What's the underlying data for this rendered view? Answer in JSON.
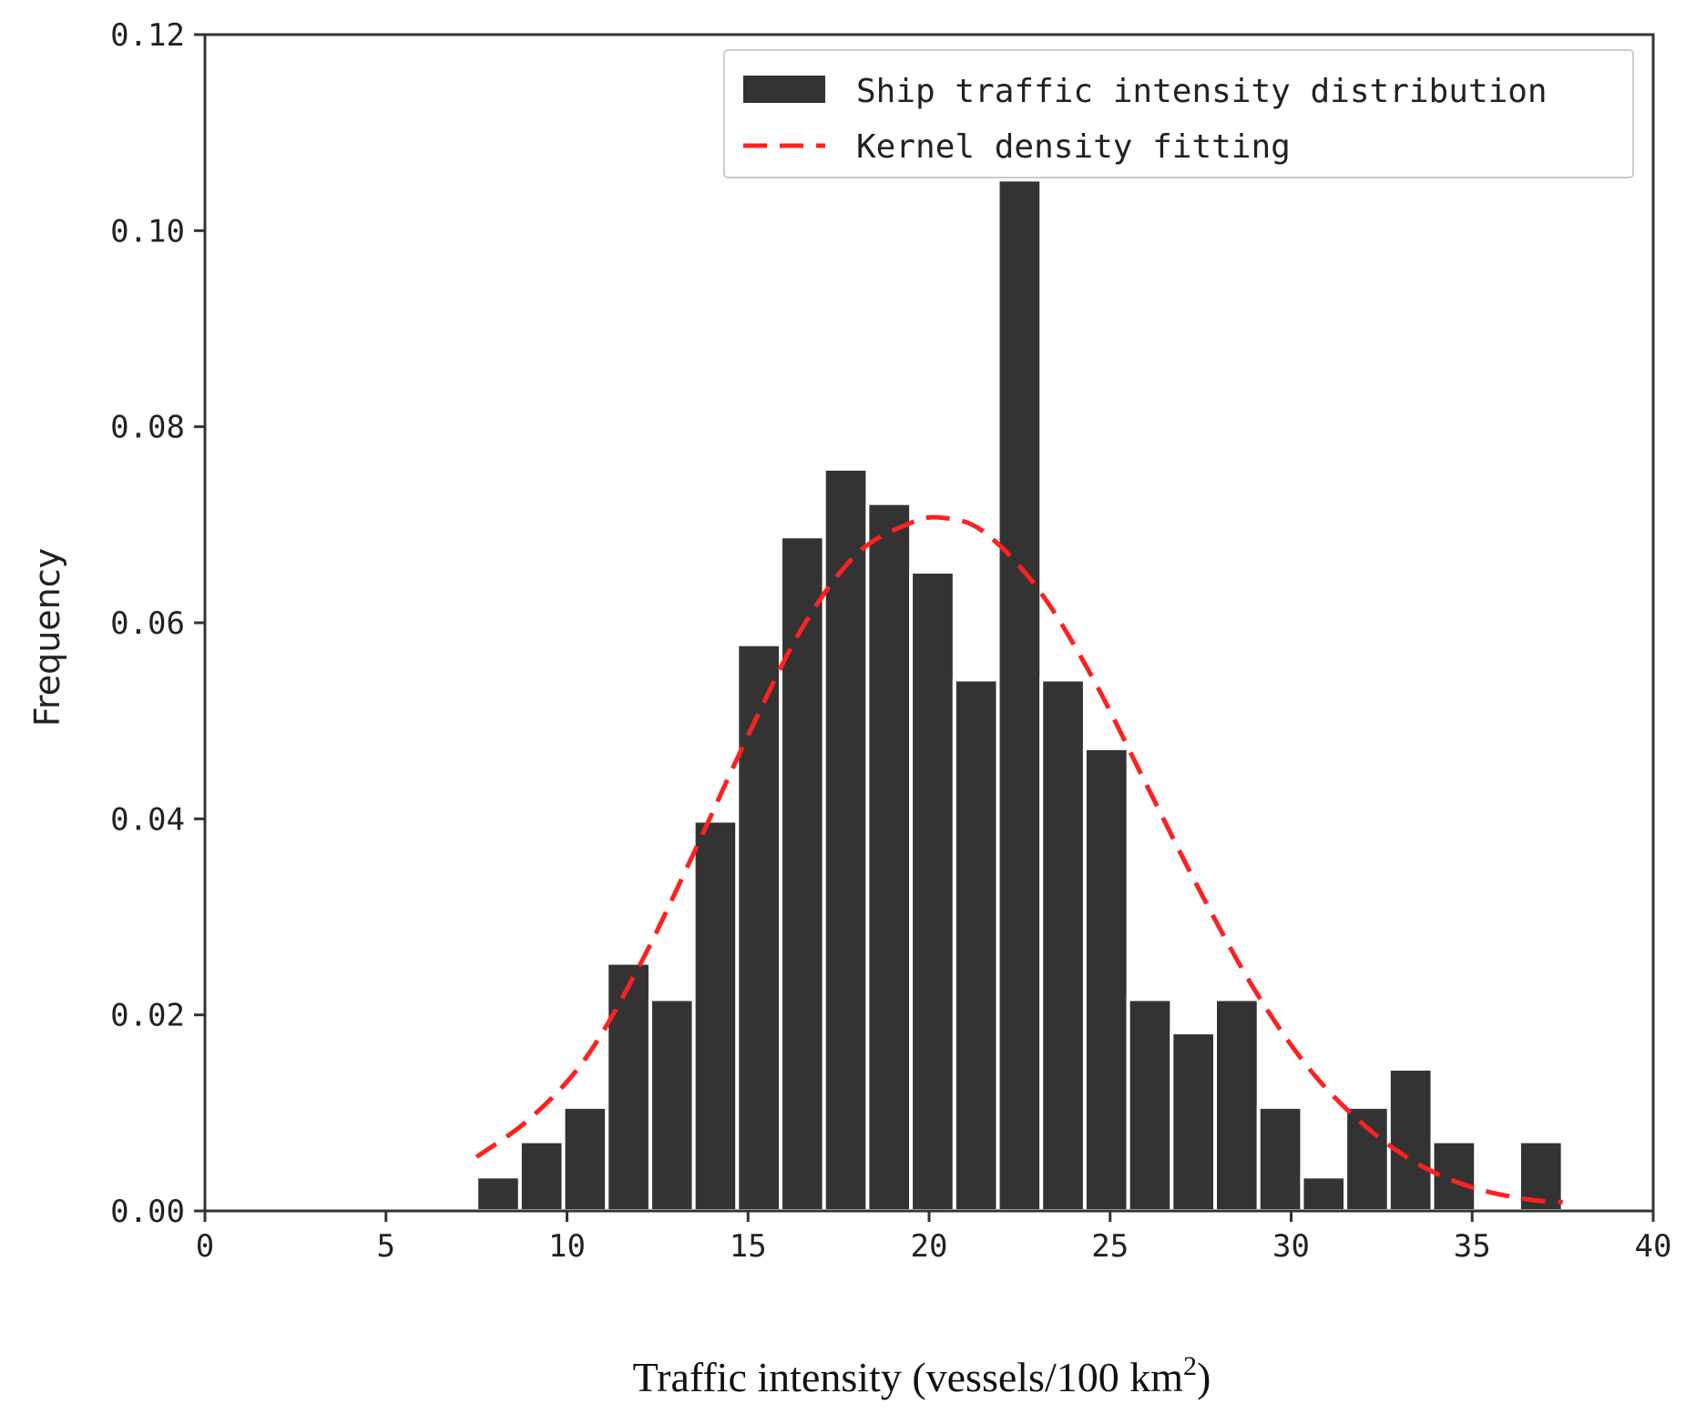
{
  "chart_data": {
    "type": "bar",
    "title": "",
    "xlabel": "Traffic intensity (vessels/100 km",
    "xlabel_superscript": "2",
    "xlabel_close": ")",
    "ylabel": "Frequency",
    "xlim": [
      0,
      40
    ],
    "ylim": [
      0,
      0.12
    ],
    "x_ticks": [
      0,
      5,
      10,
      15,
      20,
      25,
      30,
      35,
      40
    ],
    "y_ticks": [
      "0.00",
      "0.02",
      "0.04",
      "0.06",
      "0.08",
      "0.10",
      "0.12"
    ],
    "grid": false,
    "legend_position": "top-right",
    "bar_color": "#333333",
    "kde_color": "#ff2020",
    "series": [
      {
        "name": "Ship traffic intensity distribution",
        "kind": "histogram",
        "bin_start": 7.5,
        "bin_width": 1.2,
        "values": [
          0.0035,
          0.0071,
          0.0106,
          0.0253,
          0.0216,
          0.0398,
          0.0578,
          0.0688,
          0.0757,
          0.0722,
          0.0652,
          0.0542,
          0.1052,
          0.0542,
          0.0472,
          0.0216,
          0.0182,
          0.0216,
          0.0106,
          0.0035,
          0.0106,
          0.0145,
          0.0071,
          0.0,
          0.0071
        ]
      },
      {
        "name": "Kernel density fitting",
        "kind": "kde",
        "x": [
          7.5,
          9,
          10.5,
          12,
          13.5,
          15,
          16.5,
          18,
          19.5,
          20.4,
          21.5,
          23,
          24.5,
          26,
          27.5,
          29,
          30.5,
          32,
          33.5,
          35,
          36.5,
          37.5
        ],
        "values": [
          0.0055,
          0.0095,
          0.0155,
          0.025,
          0.0365,
          0.0485,
          0.0595,
          0.067,
          0.0702,
          0.0707,
          0.0693,
          0.0635,
          0.0545,
          0.0435,
          0.0325,
          0.0225,
          0.0145,
          0.0088,
          0.0048,
          0.0024,
          0.0012,
          0.0009
        ]
      }
    ]
  }
}
